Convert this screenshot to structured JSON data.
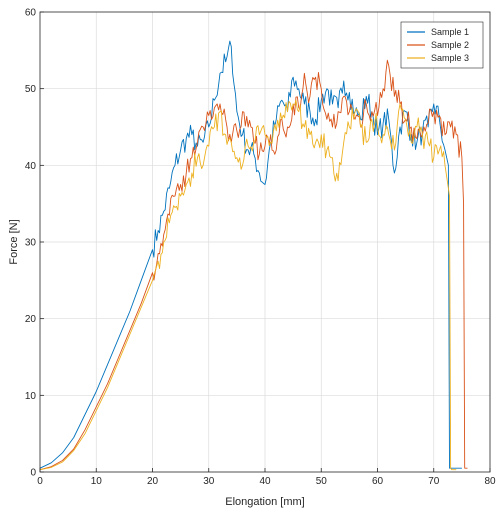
{
  "chart_data": {
    "type": "line",
    "title": "",
    "xlabel": "Elongation [mm]",
    "ylabel": "Force [N]",
    "xlim": [
      0,
      80
    ],
    "ylim": [
      0,
      60
    ],
    "xticks": [
      "0",
      "10",
      "20",
      "30",
      "40",
      "50",
      "60",
      "70",
      "80"
    ],
    "yticks": [
      "0",
      "10",
      "20",
      "30",
      "40",
      "50",
      "60"
    ],
    "grid": true,
    "legend_position": "top-right",
    "series": [
      {
        "name": "Sample 1",
        "color": "#0072BD",
        "x": [
          0,
          2,
          4,
          6,
          8,
          10,
          12,
          14,
          16,
          18,
          20,
          21,
          22,
          23,
          24,
          25,
          26,
          27,
          28,
          29,
          30,
          31,
          32,
          33,
          34,
          35,
          36,
          37,
          38,
          39,
          40,
          41,
          42,
          43,
          44,
          45,
          46,
          47,
          48,
          49,
          50,
          51,
          52,
          53,
          54,
          55,
          56,
          57,
          58,
          59,
          60,
          61,
          62,
          63,
          64,
          65,
          66,
          67,
          68,
          69,
          70,
          71,
          72,
          72.6,
          72.8,
          73.2,
          75
        ],
        "y": [
          0.5,
          1.2,
          2.5,
          4.5,
          7.5,
          10.5,
          14,
          17.5,
          21,
          25,
          29,
          31.5,
          34,
          37,
          40,
          42,
          43.5,
          44,
          42.5,
          43,
          45,
          48.5,
          52,
          53.5,
          55.5,
          47,
          44,
          42,
          41.5,
          39,
          37.5,
          43,
          46,
          48.5,
          47,
          51.5,
          50,
          48,
          47,
          46,
          48.5,
          50,
          48,
          47.5,
          51,
          49.5,
          47,
          46,
          49,
          47,
          44,
          45.5,
          46,
          39,
          45,
          47,
          44,
          43,
          44.5,
          45,
          48,
          46,
          42,
          40,
          0.5,
          0.5,
          0.5
        ]
      },
      {
        "name": "Sample 2",
        "color": "#D95319",
        "x": [
          0,
          2,
          4,
          6,
          8,
          10,
          12,
          14,
          16,
          18,
          20,
          21,
          22,
          23,
          24,
          25,
          26,
          27,
          28,
          29,
          30,
          31,
          32,
          33,
          34,
          35,
          36,
          37,
          38,
          39,
          40,
          41,
          42,
          43,
          44,
          45,
          46,
          47,
          48,
          49,
          50,
          51,
          52,
          53,
          54,
          55,
          56,
          57,
          58,
          59,
          60,
          61,
          62,
          63,
          64,
          65,
          66,
          67,
          68,
          69,
          70,
          71,
          72,
          73,
          74,
          75,
          75.3,
          75.5,
          76
        ],
        "y": [
          0.3,
          0.7,
          1.5,
          3,
          5.5,
          8.5,
          11.5,
          15,
          18.5,
          22,
          26,
          28.5,
          31,
          33.5,
          36,
          37.5,
          39,
          41,
          43,
          45,
          46.5,
          47.5,
          48,
          46,
          43,
          44.5,
          47,
          45,
          43,
          41.5,
          42.5,
          44,
          42,
          46,
          45,
          48,
          47.5,
          52,
          49,
          51.5,
          50,
          46,
          45,
          47,
          49,
          47,
          46,
          45,
          48,
          47,
          46.5,
          50,
          53,
          49,
          48,
          46,
          45,
          43.5,
          44,
          45.5,
          47,
          46.5,
          44,
          45,
          44,
          41,
          35,
          0.5,
          0.5
        ]
      },
      {
        "name": "Sample 3",
        "color": "#EDB120",
        "x": [
          0,
          2,
          4,
          6,
          8,
          10,
          12,
          14,
          16,
          18,
          20,
          21,
          22,
          23,
          24,
          25,
          26,
          27,
          28,
          29,
          30,
          31,
          32,
          33,
          34,
          35,
          36,
          37,
          38,
          39,
          40,
          41,
          42,
          43,
          44,
          45,
          46,
          47,
          48,
          49,
          50,
          51,
          52,
          53,
          54,
          55,
          56,
          57,
          58,
          59,
          60,
          61,
          62,
          63,
          64,
          65,
          66,
          67,
          68,
          69,
          70,
          71,
          72,
          72.8,
          73,
          73.2,
          74
        ],
        "y": [
          0.3,
          0.6,
          1.3,
          2.8,
          5,
          8,
          11,
          14.5,
          18,
          21.5,
          25,
          27.5,
          30,
          32.5,
          34.5,
          36,
          37.5,
          39,
          41,
          40,
          42.5,
          45,
          47,
          44,
          43,
          41,
          40,
          42.5,
          43,
          44,
          44,
          43,
          44.5,
          46,
          47,
          48,
          47,
          45,
          44,
          43,
          44,
          42,
          41,
          38,
          43,
          45,
          47,
          45,
          43,
          46,
          45,
          44,
          44,
          42,
          48,
          46,
          43,
          45,
          44,
          43,
          41,
          42,
          40,
          36,
          0.5,
          0.3,
          0.3
        ]
      }
    ]
  }
}
